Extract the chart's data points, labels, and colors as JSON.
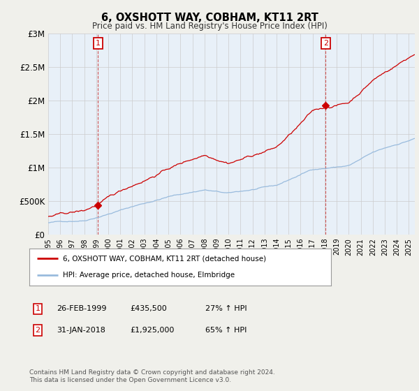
{
  "title": "6, OXSHOTT WAY, COBHAM, KT11 2RT",
  "subtitle": "Price paid vs. HM Land Registry's House Price Index (HPI)",
  "ylim": [
    0,
    3000000
  ],
  "yticks": [
    0,
    500000,
    1000000,
    1500000,
    2000000,
    2500000,
    3000000
  ],
  "ytick_labels": [
    "£0",
    "£500K",
    "£1M",
    "£1.5M",
    "£2M",
    "£2.5M",
    "£3M"
  ],
  "sale1_year": 1999.15,
  "sale1_price": 435500,
  "sale2_year": 2018.08,
  "sale2_price": 1925000,
  "property_color": "#cc0000",
  "hpi_color": "#99bbdd",
  "background_color": "#f0f0eb",
  "plot_bg_color": "#e8f0f8",
  "legend_label_property": "6, OXSHOTT WAY, COBHAM, KT11 2RT (detached house)",
  "legend_label_hpi": "HPI: Average price, detached house, Elmbridge",
  "footer_text": "Contains HM Land Registry data © Crown copyright and database right 2024.\nThis data is licensed under the Open Government Licence v3.0.",
  "table_rows": [
    {
      "num": "1",
      "date": "26-FEB-1999",
      "price": "£435,500",
      "hpi": "27% ↑ HPI"
    },
    {
      "num": "2",
      "date": "31-JAN-2018",
      "price": "£1,925,000",
      "hpi": "65% ↑ HPI"
    }
  ]
}
